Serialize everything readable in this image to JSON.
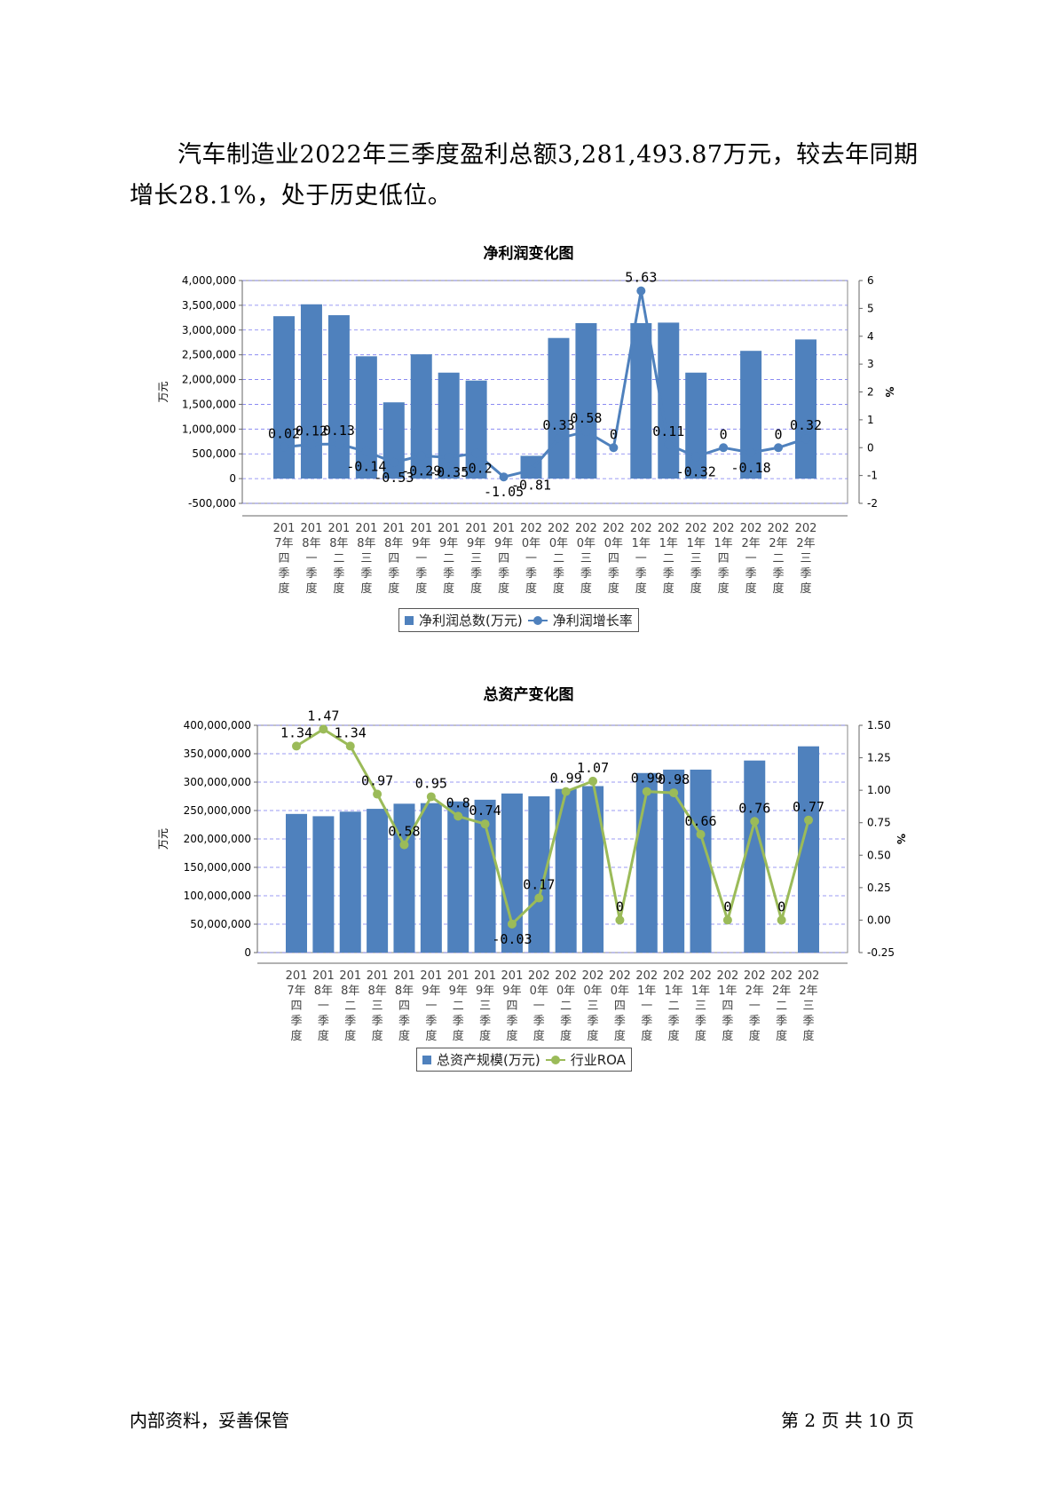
{
  "paragraph": "汽车制造业2022年三季度盈利总额3,281,493.87万元，较去年同期增长28.1%，处于历史低位。",
  "footer": {
    "left": "内部资料，妥善保管",
    "right": "第 2 页  共 10 页"
  },
  "colors": {
    "bar": "#4F81BD",
    "line1": "#4F81BD",
    "line2": "#9BBB59"
  },
  "chart_data": [
    {
      "type": "bar+line",
      "title": "净利润变化图",
      "ylabel": "万元",
      "y2label": "%",
      "ylim": [
        -500000,
        4000000
      ],
      "yticks": [
        "4,000,000",
        "3,500,000",
        "3,000,000",
        "2,500,000",
        "2,000,000",
        "1,500,000",
        "1,000,000",
        "500,000",
        "0",
        "-500,000"
      ],
      "y2lim": [
        -2,
        6
      ],
      "y2ticks": [
        "6",
        "5",
        "4",
        "3",
        "2",
        "1",
        "0",
        "-1",
        "-2"
      ],
      "categories": [
        [
          "201",
          "7年",
          "四",
          "季",
          "度"
        ],
        [
          "201",
          "8年",
          "一",
          "季",
          "度"
        ],
        [
          "201",
          "8年",
          "二",
          "季",
          "度"
        ],
        [
          "201",
          "8年",
          "三",
          "季",
          "度"
        ],
        [
          "201",
          "8年",
          "四",
          "季",
          "度"
        ],
        [
          "201",
          "9年",
          "一",
          "季",
          "度"
        ],
        [
          "201",
          "9年",
          "二",
          "季",
          "度"
        ],
        [
          "201",
          "9年",
          "三",
          "季",
          "度"
        ],
        [
          "201",
          "9年",
          "四",
          "季",
          "度"
        ],
        [
          "202",
          "0年",
          "一",
          "季",
          "度"
        ],
        [
          "202",
          "0年",
          "二",
          "季",
          "度"
        ],
        [
          "202",
          "0年",
          "三",
          "季",
          "度"
        ],
        [
          "202",
          "0年",
          "四",
          "季",
          "度"
        ],
        [
          "202",
          "1年",
          "一",
          "季",
          "度"
        ],
        [
          "202",
          "1年",
          "二",
          "季",
          "度"
        ],
        [
          "202",
          "1年",
          "三",
          "季",
          "度"
        ],
        [
          "202",
          "1年",
          "四",
          "季",
          "度"
        ],
        [
          "202",
          "2年",
          "一",
          "季",
          "度"
        ],
        [
          "202",
          "2年",
          "二",
          "季",
          "度"
        ],
        [
          "202",
          "2年",
          "三",
          "季",
          "度"
        ]
      ],
      "series": [
        {
          "name": "净利润总数(万元)",
          "kind": "bar",
          "values": [
            3280000,
            3520000,
            3300000,
            2470000,
            1540000,
            2510000,
            2140000,
            1980000,
            null,
            460000,
            2840000,
            3140000,
            null,
            3140000,
            3150000,
            2140000,
            null,
            2580000,
            null,
            2810000
          ]
        },
        {
          "name": "净利润增长率",
          "kind": "line",
          "values": [
            0.02,
            0.12,
            0.13,
            -0.14,
            -0.53,
            -0.29,
            -0.35,
            -0.2,
            -1.05,
            -0.81,
            0.33,
            0.58,
            0,
            5.63,
            0.11,
            -0.32,
            0,
            -0.18,
            0,
            0.32
          ],
          "labels": [
            "0.02",
            "0.12",
            "0.13",
            "-0.14",
            "-0.53",
            "-0.29",
            "-0.35",
            "-0.2",
            "-1.05",
            "-0.81",
            "0.33",
            "0.58",
            "0",
            "5.63",
            "0.11",
            "-0.32",
            "0",
            "-0.18",
            "0",
            "0.32"
          ]
        }
      ],
      "legend": [
        "净利润总数(万元)",
        "净利润增长率"
      ]
    },
    {
      "type": "bar+line",
      "title": "总资产变化图",
      "ylabel": "万元",
      "y2label": "%",
      "ylim": [
        0,
        400000000
      ],
      "yticks": [
        "400,000,000",
        "350,000,000",
        "300,000,000",
        "250,000,000",
        "200,000,000",
        "150,000,000",
        "100,000,000",
        "50,000,000",
        "0"
      ],
      "y2lim": [
        -0.25,
        1.5
      ],
      "y2ticks": [
        "1.50",
        "1.25",
        "1.00",
        "0.75",
        "0.50",
        "0.25",
        "0.00",
        "-0.25"
      ],
      "categories": [
        [
          "201",
          "7年",
          "四",
          "季",
          "度"
        ],
        [
          "201",
          "8年",
          "一",
          "季",
          "度"
        ],
        [
          "201",
          "8年",
          "二",
          "季",
          "度"
        ],
        [
          "201",
          "8年",
          "三",
          "季",
          "度"
        ],
        [
          "201",
          "8年",
          "四",
          "季",
          "度"
        ],
        [
          "201",
          "9年",
          "一",
          "季",
          "度"
        ],
        [
          "201",
          "9年",
          "二",
          "季",
          "度"
        ],
        [
          "201",
          "9年",
          "三",
          "季",
          "度"
        ],
        [
          "201",
          "9年",
          "四",
          "季",
          "度"
        ],
        [
          "202",
          "0年",
          "一",
          "季",
          "度"
        ],
        [
          "202",
          "0年",
          "二",
          "季",
          "度"
        ],
        [
          "202",
          "0年",
          "三",
          "季",
          "度"
        ],
        [
          "202",
          "0年",
          "四",
          "季",
          "度"
        ],
        [
          "202",
          "1年",
          "一",
          "季",
          "度"
        ],
        [
          "202",
          "1年",
          "二",
          "季",
          "度"
        ],
        [
          "202",
          "1年",
          "三",
          "季",
          "度"
        ],
        [
          "202",
          "1年",
          "四",
          "季",
          "度"
        ],
        [
          "202",
          "2年",
          "一",
          "季",
          "度"
        ],
        [
          "202",
          "2年",
          "二",
          "季",
          "度"
        ],
        [
          "202",
          "2年",
          "三",
          "季",
          "度"
        ]
      ],
      "series": [
        {
          "name": "总资产规模(万元)",
          "kind": "bar",
          "values": [
            244000000,
            240000000,
            248000000,
            253000000,
            262000000,
            263000000,
            266000000,
            269000000,
            280000000,
            275000000,
            288000000,
            293000000,
            null,
            316000000,
            322000000,
            322000000,
            null,
            338000000,
            null,
            363000000
          ]
        },
        {
          "name": "行业ROA",
          "kind": "line",
          "values": [
            1.34,
            1.47,
            1.34,
            0.97,
            0.58,
            0.95,
            0.8,
            0.74,
            -0.03,
            0.17,
            0.99,
            1.07,
            0,
            0.99,
            0.98,
            0.66,
            0,
            0.76,
            0,
            0.77
          ],
          "labels": [
            "1.34",
            "1.47",
            "1.34",
            "0.97",
            "0.58",
            "0.95",
            "0.8",
            "0.74",
            "-0.03",
            "0.17",
            "0.99",
            "1.07",
            "0",
            "0.99",
            "0.98",
            "0.66",
            "0",
            "0.76",
            "0",
            "0.77"
          ]
        }
      ],
      "legend": [
        "总资产规模(万元)",
        "行业ROA"
      ]
    }
  ]
}
